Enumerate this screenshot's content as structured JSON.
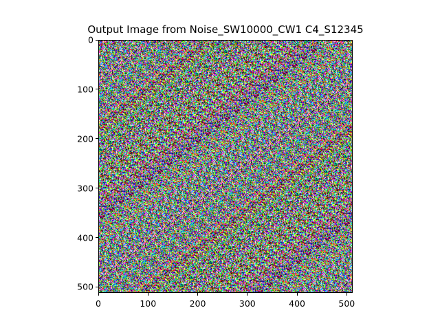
{
  "figure": {
    "title": "Output Image from Noise_SW10000_CW1 C4_S12345"
  },
  "image_axes": {
    "x_ticks": [
      {
        "value": 0,
        "label": "0"
      },
      {
        "value": 100,
        "label": "100"
      },
      {
        "value": 200,
        "label": "200"
      },
      {
        "value": 300,
        "label": "300"
      },
      {
        "value": 400,
        "label": "400"
      },
      {
        "value": 500,
        "label": "500"
      }
    ],
    "y_ticks": [
      {
        "value": 0,
        "label": "0"
      },
      {
        "value": 100,
        "label": "100"
      },
      {
        "value": 200,
        "label": "200"
      },
      {
        "value": 300,
        "label": "300"
      },
      {
        "value": 400,
        "label": "400"
      },
      {
        "value": 500,
        "label": "500"
      }
    ],
    "x_range": [
      0,
      512
    ],
    "y_range": [
      0,
      512
    ],
    "y_inverted": true
  },
  "image": {
    "description_type": "multicolor noise",
    "palette": [
      "#ff0000",
      "#00ff00",
      "#0000ff",
      "#ffff00",
      "#ff00ff",
      "#00ffff",
      "#ffffff",
      "#000000"
    ]
  }
}
